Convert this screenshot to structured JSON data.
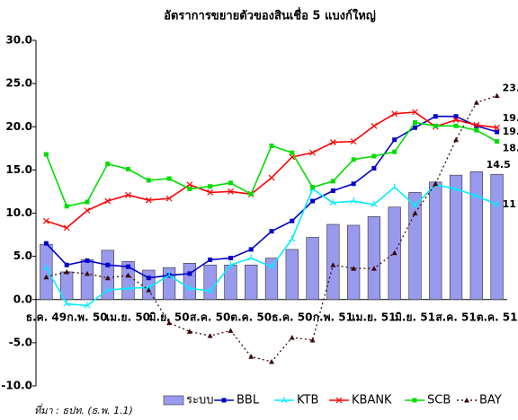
{
  "chart_data": {
    "type": "bar_line",
    "title": "อัตราการขยายตัวของสินเชื่อ 5 แบงก์ใหญ่",
    "source": "ที่มา : ธปท. (ธ.พ. 1.1)",
    "categories": [
      "ธ.ค. 49",
      null,
      "ก.พ. 50",
      null,
      "เม.ย. 50",
      null,
      "มิ.ย. 50",
      null,
      "ส.ค. 50",
      null,
      "ต.ค. 50",
      null,
      "ธ.ค. 50",
      null,
      "ก.พ. 51",
      null,
      "เม.ย. 51",
      null,
      "มิ.ย. 51",
      null,
      "ส.ค. 51",
      null,
      "ต.ค. 51"
    ],
    "ylim": [
      -10,
      30
    ],
    "yticks": [
      {
        "value": -10,
        "label": "-10.0"
      },
      {
        "value": -5,
        "label": "-5.0"
      },
      {
        "value": 0,
        "label": "0.0"
      },
      {
        "value": 5,
        "label": "5.0"
      },
      {
        "value": 10,
        "label": "10.0"
      },
      {
        "value": 15,
        "label": "15.0"
      },
      {
        "value": 20,
        "label": "20.0"
      },
      {
        "value": 25,
        "label": "25.0"
      },
      {
        "value": 30,
        "label": "30.0"
      }
    ],
    "series": [
      {
        "name": "ระบบ",
        "kind": "bar",
        "color": "#9999ee",
        "values": [
          6.4,
          3.2,
          4.6,
          5.7,
          4.4,
          3.4,
          3.7,
          4.2,
          4.0,
          4.0,
          4.0,
          4.8,
          5.8,
          7.2,
          8.7,
          8.6,
          9.6,
          10.7,
          12.4,
          13.6,
          14.4,
          14.8,
          14.5
        ]
      },
      {
        "name": "BBL",
        "kind": "line",
        "color": "#0000cc",
        "values": [
          6.5,
          4.0,
          4.5,
          4.0,
          3.8,
          2.5,
          2.8,
          3.0,
          4.6,
          4.8,
          5.8,
          7.9,
          9.1,
          11.4,
          12.6,
          13.4,
          15.2,
          18.5,
          19.9,
          21.2,
          21.2,
          20.1,
          19.4
        ]
      },
      {
        "name": "KTB",
        "kind": "line",
        "color": "#00eeff",
        "values": [
          3.7,
          -0.5,
          -0.7,
          1.1,
          1.3,
          1.4,
          2.8,
          1.3,
          1.0,
          4.0,
          4.8,
          3.8,
          7.0,
          12.8,
          11.2,
          11.4,
          11.0,
          13.0,
          10.9,
          13.3,
          12.8,
          12.0,
          11.0
        ]
      },
      {
        "name": "KBANK",
        "kind": "line",
        "color": "#ff0000",
        "values": [
          9.1,
          8.3,
          10.3,
          11.4,
          12.1,
          11.5,
          11.7,
          13.3,
          12.4,
          12.5,
          12.2,
          14.1,
          16.5,
          17.0,
          18.2,
          18.3,
          20.1,
          21.5,
          21.7,
          20.0,
          20.8,
          20.2,
          19.9
        ]
      },
      {
        "name": "SCB",
        "kind": "line",
        "color": "#00dd00",
        "values": [
          16.8,
          10.8,
          11.3,
          15.7,
          15.1,
          13.8,
          14.0,
          12.8,
          13.1,
          13.5,
          12.2,
          17.8,
          17.0,
          13.0,
          13.7,
          16.2,
          16.6,
          17.1,
          20.5,
          20.1,
          20.1,
          19.6,
          18.3
        ]
      },
      {
        "name": "BAY",
        "kind": "dotted",
        "color": "#3a0a0a",
        "values": [
          2.6,
          3.2,
          3.0,
          2.5,
          2.8,
          1.1,
          -2.7,
          -3.7,
          -4.2,
          -3.6,
          -6.6,
          -7.2,
          -4.4,
          -4.7,
          4.0,
          3.6,
          3.6,
          5.4,
          10.0,
          13.4,
          18.5,
          22.8,
          23.6
        ]
      }
    ]
  }
}
